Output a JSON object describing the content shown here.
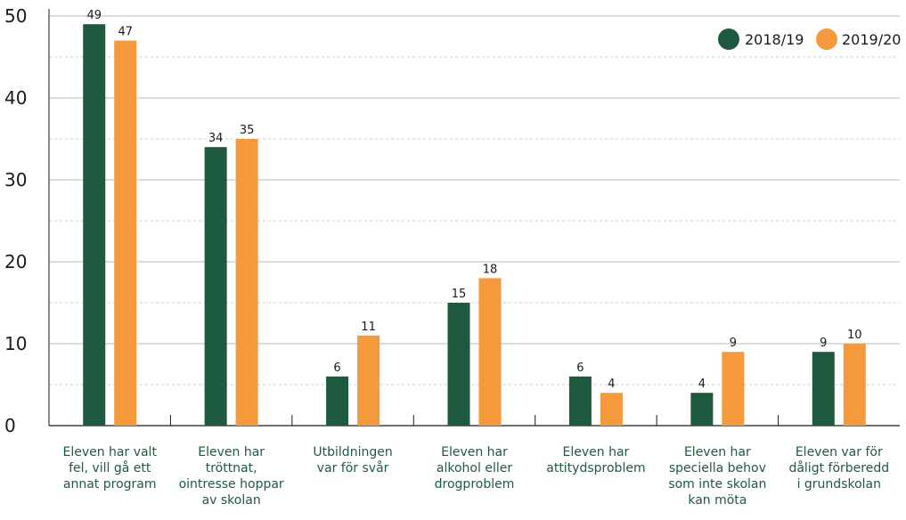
{
  "chart_data": {
    "type": "bar",
    "title": "",
    "xlabel": "",
    "ylabel": "",
    "ylim": [
      0,
      50
    ],
    "yticks": [
      0,
      10,
      20,
      30,
      40,
      50
    ],
    "grid": true,
    "legend_position": "top-right",
    "categories": [
      [
        "Eleven har valt",
        "fel, vill gå ett",
        "annat program"
      ],
      [
        "Eleven har",
        "tröttnat,",
        "ointresse hoppar",
        "av skolan"
      ],
      [
        "Utbildningen",
        "var för svår"
      ],
      [
        "Eleven har",
        "alkohol eller",
        "drogproblem"
      ],
      [
        "Eleven har",
        "attitydsproblem"
      ],
      [
        "Eleven har",
        "speciella behov",
        "som inte skolan",
        "kan möta"
      ],
      [
        "Eleven var för",
        "dåligt förberedd",
        "i grundskolan"
      ]
    ],
    "series": [
      {
        "name": "2018/19",
        "color": "#1e5a40",
        "values": [
          49,
          34,
          6,
          15,
          6,
          4,
          9
        ]
      },
      {
        "name": "2019/20",
        "color": "#f59a3c",
        "values": [
          47,
          35,
          11,
          18,
          4,
          9,
          10
        ]
      }
    ]
  }
}
